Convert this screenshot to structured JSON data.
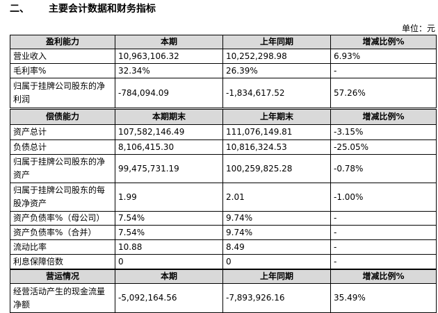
{
  "heading": {
    "number": "二、",
    "title": "主要会计数据和财务指标"
  },
  "unit": "单位：元",
  "sections": [
    {
      "header": [
        "盈利能力",
        "本期",
        "上年同期",
        "增减比例%"
      ],
      "rows": [
        [
          "营业收入",
          "10,963,106.32",
          "10,252,298.98",
          "6.93%"
        ],
        [
          "毛利率%",
          "32.34%",
          "26.39%",
          "-"
        ],
        [
          "归属于挂牌公司股东的净利润",
          "-784,094.09",
          "-1,834,617.52",
          "57.26%"
        ]
      ]
    },
    {
      "header": [
        "偿债能力",
        "本期期末",
        "上年期末",
        "增减比例%"
      ],
      "rows": [
        [
          "资产总计",
          "107,582,146.49",
          "111,076,149.81",
          "-3.15%"
        ],
        [
          "负债总计",
          "8,106,415.30",
          "10,816,324.53",
          "-25.05%"
        ],
        [
          "归属于挂牌公司股东的净资产",
          "99,475,731.19",
          "100,259,825.28",
          "-0.78%"
        ],
        [
          "归属于挂牌公司股东的每股净资产",
          "1.99",
          "2.01",
          "-1.00%"
        ],
        [
          "资产负债率%（母公司）",
          "7.54%",
          "9.74%",
          "-"
        ],
        [
          "资产负债率%（合并）",
          "7.54%",
          "9.74%",
          "-"
        ],
        [
          "流动比率",
          "10.88",
          "8.49",
          "-"
        ],
        [
          "利息保障倍数",
          "0",
          "0",
          "-"
        ]
      ]
    },
    {
      "header": [
        "营运情况",
        "本期",
        "上年同期",
        "增减比例%"
      ],
      "rows": [
        [
          "经营活动产生的现金流量净额",
          "-5,092,164.56",
          "-7,893,926.16",
          "35.49%"
        ]
      ]
    }
  ]
}
